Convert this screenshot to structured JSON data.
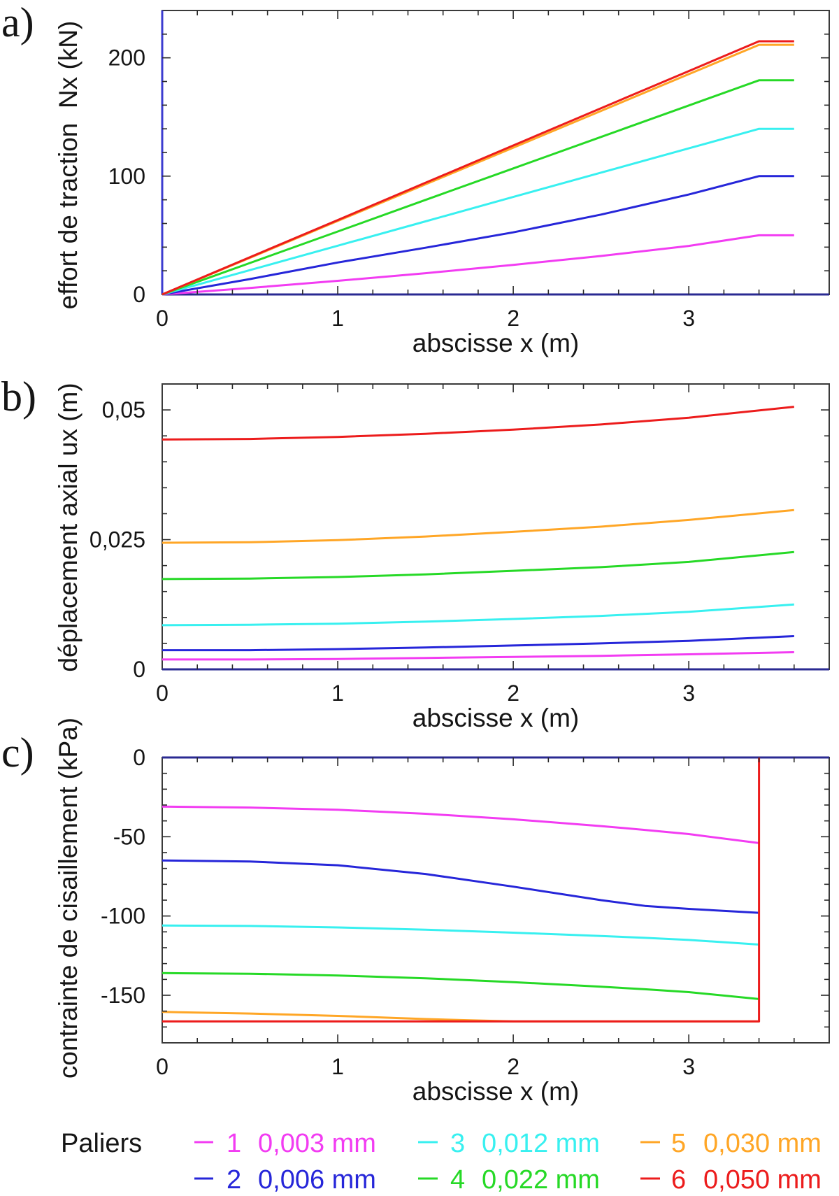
{
  "legend": {
    "title": "Paliers",
    "items": [
      {
        "label": "1",
        "value": "0,003 mm",
        "color": "#f23cf2"
      },
      {
        "label": "2",
        "value": "0,006 mm",
        "color": "#2626d9"
      },
      {
        "label": "3",
        "value": "0,012 mm",
        "color": "#38f0f0"
      },
      {
        "label": "4",
        "value": "0,022 mm",
        "color": "#26d926"
      },
      {
        "label": "5",
        "value": "0,030 mm",
        "color": "#ffa626"
      },
      {
        "label": "6",
        "value": "0,050 mm",
        "color": "#ec1c1c"
      }
    ]
  },
  "chart_data": [
    {
      "id": "a",
      "type": "line",
      "panel_label": "a)",
      "xlabel": "abscisse x (m)",
      "ylabel": "effort de traction  Nx (kN)",
      "xlim": [
        0,
        3.8
      ],
      "ylim": [
        0,
        240
      ],
      "xticks": {
        "values": [
          0,
          1,
          2,
          3
        ],
        "labels": [
          "0",
          "1",
          "2",
          "3"
        ],
        "minor_step": 0.2
      },
      "yticks": {
        "values": [
          0,
          100,
          200
        ],
        "labels": [
          "0",
          "100",
          "200"
        ],
        "minor_step": 20
      },
      "axis_colors": {
        "zero": "#2a2a92",
        "left": "#3c3cd0"
      },
      "x": [
        0,
        0.5,
        1,
        1.5,
        2,
        2.5,
        3,
        3.4,
        3.6
      ],
      "series": [
        {
          "y": [
            0,
            5.5,
            11.5,
            18,
            25,
            32.5,
            41,
            50,
            50
          ]
        },
        {
          "y": [
            0,
            13,
            27,
            39.5,
            52.5,
            67.5,
            84.5,
            100,
            100
          ]
        },
        {
          "y": [
            0,
            20.6,
            41.2,
            61.8,
            82.4,
            103,
            123.5,
            140,
            140
          ]
        },
        {
          "y": [
            0,
            26.6,
            53.2,
            79.9,
            106.5,
            133.1,
            159.7,
            181,
            181
          ]
        },
        {
          "y": [
            0,
            31,
            62.1,
            93.1,
            124.1,
            155.1,
            186.2,
            211,
            211
          ]
        },
        {
          "y": [
            0,
            31.5,
            62.9,
            94.4,
            125.9,
            157.4,
            188.8,
            214,
            214
          ]
        }
      ]
    },
    {
      "id": "b",
      "type": "line",
      "panel_label": "b)",
      "xlabel": "abscisse x (m)",
      "ylabel": "déplacement axial ux (m)",
      "xlim": [
        0,
        3.8
      ],
      "ylim": [
        0,
        0.055
      ],
      "xticks": {
        "values": [
          0,
          1,
          2,
          3
        ],
        "labels": [
          "0",
          "1",
          "2",
          "3"
        ],
        "minor_step": 0.2
      },
      "yticks": {
        "values": [
          0,
          0.025,
          0.05
        ],
        "labels": [
          "0",
          "0,025",
          "0,05"
        ],
        "minor_step": 0.005
      },
      "axis_colors": {
        "zero": "#2a2a92"
      },
      "x": [
        0,
        0.5,
        1,
        1.5,
        2,
        2.5,
        3,
        3.6
      ],
      "series": [
        {
          "y": [
            0.0019,
            0.0019,
            0.002,
            0.0022,
            0.0024,
            0.0026,
            0.0029,
            0.0033
          ]
        },
        {
          "y": [
            0.0037,
            0.0037,
            0.0039,
            0.0042,
            0.0046,
            0.005,
            0.0055,
            0.0064
          ]
        },
        {
          "y": [
            0.0085,
            0.0086,
            0.0088,
            0.0092,
            0.0097,
            0.0103,
            0.0111,
            0.0125
          ]
        },
        {
          "y": [
            0.0174,
            0.0175,
            0.0178,
            0.0183,
            0.019,
            0.0197,
            0.0207,
            0.0226
          ]
        },
        {
          "y": [
            0.0244,
            0.0245,
            0.0249,
            0.0256,
            0.0265,
            0.0275,
            0.0288,
            0.0307
          ]
        },
        {
          "y": [
            0.0443,
            0.0444,
            0.0448,
            0.0454,
            0.0462,
            0.0472,
            0.0485,
            0.0506
          ]
        }
      ]
    },
    {
      "id": "c",
      "type": "line",
      "panel_label": "c)",
      "xlabel": "abscisse x (m)",
      "ylabel": "contrainte de cisaillement (kPa)",
      "xlim": [
        0,
        3.8
      ],
      "ylim": [
        -180,
        0
      ],
      "xticks": {
        "values": [
          0,
          1,
          2,
          3
        ],
        "labels": [
          "0",
          "1",
          "2",
          "3"
        ],
        "minor_step": 0.2
      },
      "yticks": {
        "values": [
          0,
          -50,
          -100,
          -150
        ],
        "labels": [
          "0",
          "-50",
          "-100",
          "-150"
        ],
        "minor_step": 10
      },
      "axis_colors": {
        "zero": "#2a2a92"
      },
      "x": [
        0,
        0.5,
        1,
        1.5,
        2,
        2.5,
        2.75,
        3,
        3.4
      ],
      "series": [
        {
          "y": [
            -31,
            -31.6,
            -33,
            -35.5,
            -39,
            -43.3,
            -45.7,
            -48.3,
            -54
          ]
        },
        {
          "y": [
            -65,
            -65.6,
            -68,
            -73.5,
            -81.5,
            -90,
            -93.6,
            -95.5,
            -98
          ]
        },
        {
          "y": [
            -106,
            -106.3,
            -107.2,
            -108.6,
            -110.5,
            -112.6,
            -113.8,
            -115.1,
            -118
          ]
        },
        {
          "y": [
            -136,
            -136.4,
            -137.5,
            -139.3,
            -141.7,
            -144.6,
            -146.2,
            -148,
            -152.4
          ]
        },
        {
          "y": [
            -160.5,
            -161.5,
            -163,
            -165,
            -166.5,
            -166.5,
            -166.5,
            -166.5,
            -166.5
          ]
        },
        {
          "x": [
            0,
            3.4,
            3.4
          ],
          "y": [
            -166.5,
            -166.5,
            0
          ]
        }
      ]
    }
  ]
}
